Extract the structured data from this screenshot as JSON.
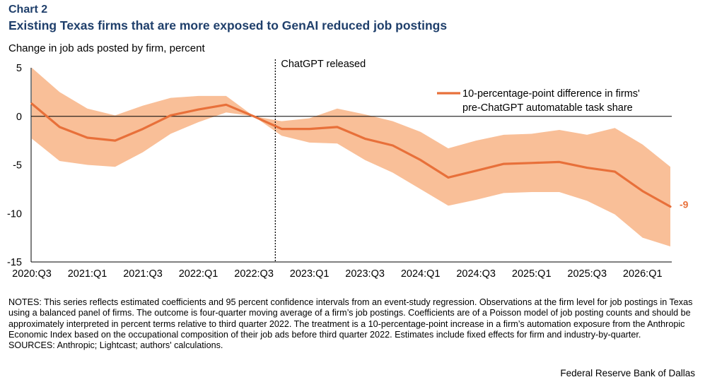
{
  "header": {
    "chart_number": "Chart 2",
    "title": "Existing Texas firms that are more exposed to GenAI reduced job postings"
  },
  "colors": {
    "title": "#1f3f6b",
    "line": "#e8703a",
    "band": "#f9bf98"
  },
  "chart_data": {
    "type": "line",
    "ylabel": "Change in job ads posted by firm, percent",
    "ylim": [
      -15,
      5
    ],
    "yticks": [
      5,
      0,
      -5,
      -10,
      -15
    ],
    "x": [
      "2020:Q3",
      "2020:Q4",
      "2021:Q1",
      "2021:Q2",
      "2021:Q3",
      "2021:Q4",
      "2022:Q1",
      "2022:Q2",
      "2022:Q3",
      "2022:Q4",
      "2023:Q1",
      "2023:Q2",
      "2023:Q3",
      "2023:Q4",
      "2024:Q1",
      "2024:Q2",
      "2024:Q3",
      "2024:Q4",
      "2025:Q1",
      "2025:Q2",
      "2025:Q3",
      "2025:Q4",
      "2026:Q1",
      "2026:Q2"
    ],
    "xtick_labels": [
      "2020:Q3",
      "2021:Q1",
      "2021:Q3",
      "2022:Q1",
      "2022:Q3",
      "2023:Q1",
      "2023:Q3",
      "2024:Q1",
      "2024:Q3",
      "2025:Q1",
      "2025:Q3",
      "2026:Q1"
    ],
    "series": [
      {
        "name": "10-percentage-point difference in firms' pre-ChatGPT automatable task share",
        "values": [
          1.3,
          -1.1,
          -2.2,
          -2.5,
          -1.3,
          0.1,
          0.7,
          1.2,
          0.0,
          -1.3,
          -1.3,
          -1.1,
          -2.3,
          -3.0,
          -4.5,
          -6.3,
          -5.6,
          -4.9,
          -4.8,
          -4.7,
          -5.3,
          -5.7,
          -7.7,
          -9.3
        ],
        "lower": [
          -2.3,
          -4.6,
          -5.0,
          -5.2,
          -3.7,
          -1.8,
          -0.6,
          0.4,
          0.0,
          -2.0,
          -2.7,
          -2.8,
          -4.5,
          -5.8,
          -7.5,
          -9.2,
          -8.6,
          -7.9,
          -7.8,
          -7.8,
          -8.7,
          -10.1,
          -12.5,
          -13.4
        ],
        "upper": [
          5.0,
          2.5,
          0.8,
          0.1,
          1.1,
          1.9,
          2.1,
          2.1,
          0.0,
          -0.5,
          -0.2,
          0.8,
          0.2,
          -0.5,
          -1.6,
          -3.3,
          -2.5,
          -1.9,
          -1.8,
          -1.4,
          -1.9,
          -1.2,
          -2.9,
          -5.2
        ]
      }
    ],
    "legend": {
      "line1": "10-percentage-point difference in firms'",
      "line2": "pre-ChatGPT automatable task share",
      "position": "top-right"
    },
    "annotation": {
      "label": "ChatGPT released",
      "at": "2022:Q4"
    },
    "end_label": "-9",
    "grid": false
  },
  "notes": {
    "text": "NOTES: This series reflects estimated coefficients and 95 percent confidence intervals from an event-study regression. Observations at the firm level for job postings in Texas using a balanced panel of firms. The outcome is four-quarter moving average of a firm’s job postings. Coefficients are of a Poisson model of job posting counts and should be approximately interpreted in percent terms relative to third quarter 2022. The treatment is a 10-percentage-point increase in a firm’s automation exposure from the Anthropic Economic Index based on the occupational composition of their job ads before third quarter 2022. Estimates include fixed effects for firm and industry-by-quarter.",
    "sources": "SOURCES: Anthropic; Lightcast; authors' calculations."
  },
  "credit": "Federal Reserve Bank of Dallas"
}
